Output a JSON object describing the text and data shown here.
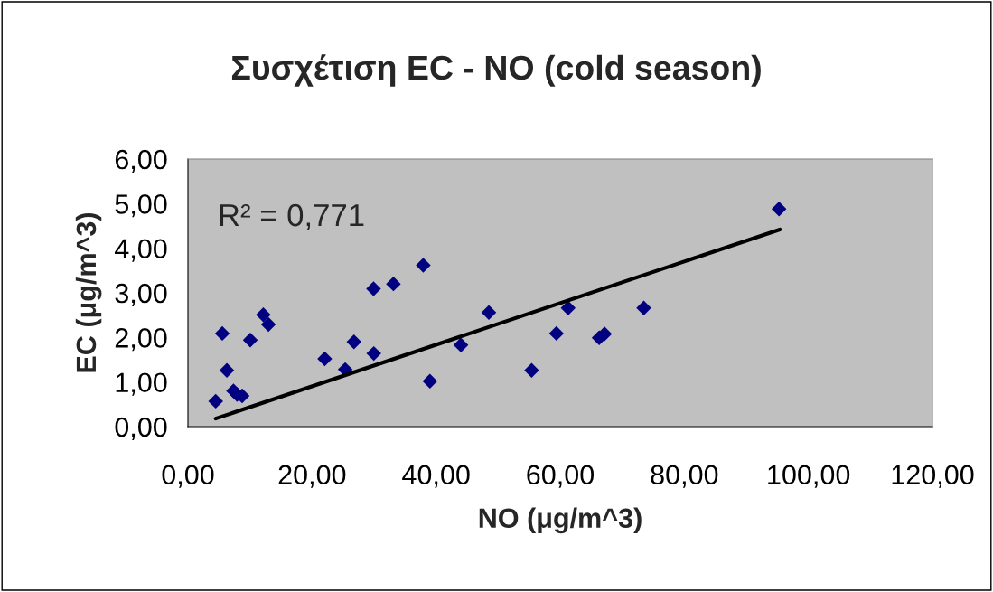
{
  "chart_data": {
    "type": "scatter",
    "title": "Συσχέτιση EC - NO (cold season)",
    "xlabel": "NO (μg/m^3)",
    "ylabel": "EC (μg/m^3)",
    "xlim": [
      0,
      120
    ],
    "ylim": [
      0,
      6
    ],
    "xticks": [
      {
        "value": 0,
        "label": "0,00"
      },
      {
        "value": 20,
        "label": "20,00"
      },
      {
        "value": 40,
        "label": "40,00"
      },
      {
        "value": 60,
        "label": "60,00"
      },
      {
        "value": 80,
        "label": "80,00"
      },
      {
        "value": 100,
        "label": "100,00"
      },
      {
        "value": 120,
        "label": "120,00"
      }
    ],
    "yticks": [
      {
        "value": 0,
        "label": "0,00"
      },
      {
        "value": 1,
        "label": "1,00"
      },
      {
        "value": 2,
        "label": "2,00"
      },
      {
        "value": 3,
        "label": "3,00"
      },
      {
        "value": 4,
        "label": "4,00"
      },
      {
        "value": 5,
        "label": "5,00"
      },
      {
        "value": 6,
        "label": "6,00"
      }
    ],
    "grid": false,
    "legend": false,
    "series": [
      {
        "marker": "diamond",
        "color": "#000080",
        "x": [
          4.47,
          5.54,
          6.27,
          7.34,
          7.92,
          8.74,
          10.05,
          12.15,
          12.97,
          22.05,
          25.35,
          26.76,
          29.92,
          29.96,
          33.12,
          37.93,
          39.0,
          43.99,
          48.5,
          55.4,
          59.39,
          61.28,
          66.28,
          67.15,
          73.47,
          95.27
        ],
        "values": [
          0.57,
          2.09,
          1.26,
          0.8,
          0.72,
          0.69,
          1.94,
          2.51,
          2.29,
          1.52,
          1.28,
          1.9,
          3.09,
          1.64,
          3.2,
          3.62,
          1.02,
          1.83,
          2.56,
          1.26,
          2.09,
          2.66,
          1.99,
          2.08,
          2.66,
          4.88
        ]
      },
      {
        "type": "line",
        "marker": "none",
        "color": "#000000",
        "x": [
          4.47,
          95.4
        ],
        "values": [
          0.18,
          4.42
        ]
      }
    ],
    "annotations": [
      "R² = 0,771"
    ]
  }
}
